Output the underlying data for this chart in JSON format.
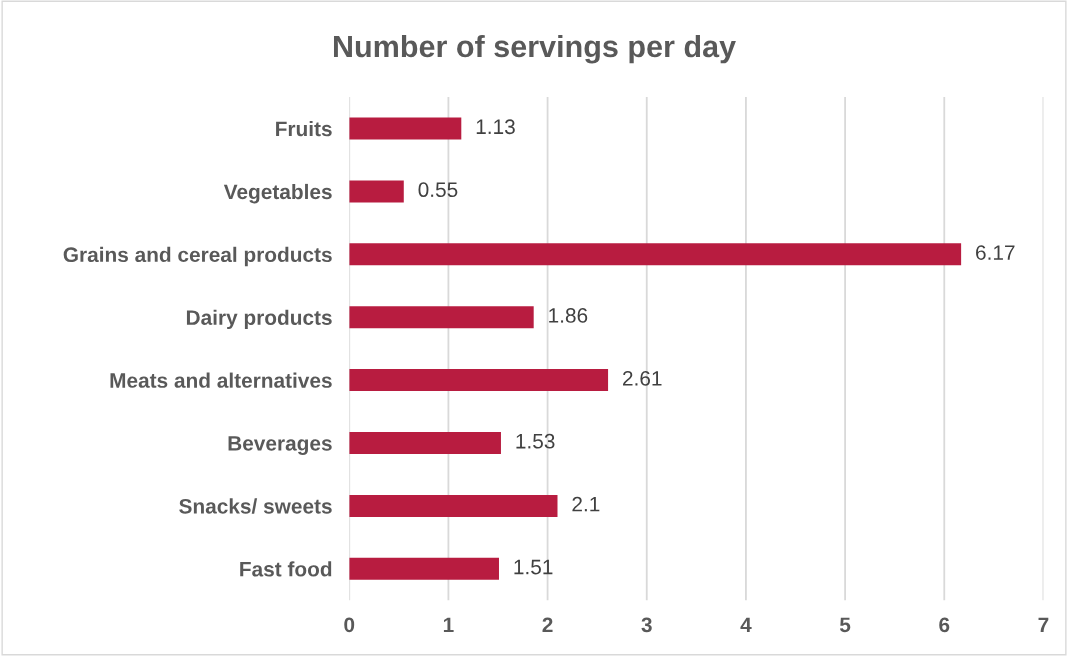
{
  "chart_data": {
    "type": "bar",
    "orientation": "horizontal",
    "title": "Number of servings per day",
    "categories": [
      "Fruits",
      "Vegetables",
      "Grains and cereal products",
      "Dairy products",
      "Meats and alternatives",
      "Beverages",
      "Snacks/ sweets",
      "Fast food"
    ],
    "values": [
      1.13,
      0.55,
      6.17,
      1.86,
      2.61,
      1.53,
      2.1,
      1.51
    ],
    "color": "#b81c40",
    "xlim": [
      0,
      7
    ],
    "xticks": [
      0,
      1,
      2,
      3,
      4,
      5,
      6,
      7
    ],
    "grid": "x",
    "data_labels": true
  }
}
